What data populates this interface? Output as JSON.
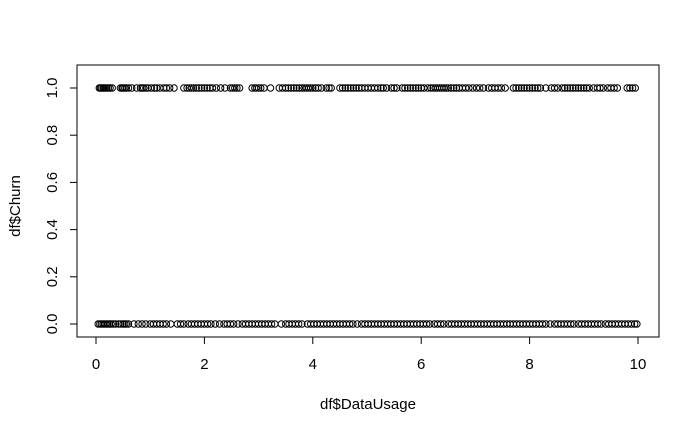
{
  "chart_data": {
    "type": "scatter",
    "title": "",
    "xlabel": "df$DataUsage",
    "ylabel": "df$Churn",
    "xlim": [
      0,
      10
    ],
    "ylim": [
      0,
      1
    ],
    "x_ticks": [
      0,
      2,
      4,
      6,
      8,
      10
    ],
    "x_tick_labels": [
      "0",
      "2",
      "4",
      "6",
      "8",
      "10"
    ],
    "y_ticks": [
      0.0,
      0.2,
      0.4,
      0.6,
      0.8,
      1.0
    ],
    "y_tick_labels": [
      "0.0",
      "0.2",
      "0.4",
      "0.6",
      "0.8",
      "1.0"
    ],
    "grid": false,
    "legend": "none",
    "marker": "open-circle",
    "series": [
      {
        "y": 1,
        "x": [
          0.06,
          0.08,
          0.1,
          0.13,
          0.15,
          0.17,
          0.2,
          0.23,
          0.26,
          0.3,
          0.45,
          0.48,
          0.5,
          0.53,
          0.56,
          0.6,
          0.66,
          0.75,
          0.82,
          0.85,
          0.88,
          0.92,
          0.96,
          1.02,
          1.08,
          1.12,
          1.18,
          1.25,
          1.3,
          1.36,
          1.44,
          1.62,
          1.68,
          1.72,
          1.76,
          1.8,
          1.85,
          1.9,
          1.95,
          2.0,
          2.05,
          2.1,
          2.15,
          2.22,
          2.3,
          2.38,
          2.48,
          2.52,
          2.56,
          2.6,
          2.65,
          2.88,
          2.93,
          2.96,
          3.0,
          3.04,
          3.1,
          3.22,
          3.38,
          3.44,
          3.5,
          3.55,
          3.6,
          3.65,
          3.7,
          3.75,
          3.8,
          3.84,
          3.88,
          3.92,
          3.96,
          4.0,
          4.05,
          4.1,
          4.16,
          4.25,
          4.3,
          4.34,
          4.5,
          4.55,
          4.6,
          4.65,
          4.7,
          4.75,
          4.8,
          4.85,
          4.9,
          4.96,
          5.02,
          5.08,
          5.14,
          5.2,
          5.26,
          5.3,
          5.36,
          5.45,
          5.5,
          5.55,
          5.65,
          5.7,
          5.75,
          5.8,
          5.85,
          5.9,
          5.95,
          6.0,
          6.05,
          6.12,
          6.18,
          6.22,
          6.26,
          6.3,
          6.34,
          6.38,
          6.42,
          6.46,
          6.5,
          6.55,
          6.6,
          6.65,
          6.7,
          6.76,
          6.82,
          6.88,
          6.95,
          7.02,
          7.08,
          7.15,
          7.24,
          7.3,
          7.36,
          7.42,
          7.48,
          7.55,
          7.7,
          7.75,
          7.8,
          7.85,
          7.9,
          7.95,
          8.0,
          8.05,
          8.1,
          8.15,
          8.2,
          8.3,
          8.4,
          8.46,
          8.52,
          8.6,
          8.65,
          8.7,
          8.75,
          8.8,
          8.85,
          8.9,
          8.95,
          9.0,
          9.05,
          9.1,
          9.18,
          9.25,
          9.3,
          9.36,
          9.44,
          9.5,
          9.56,
          9.62,
          9.8,
          9.85,
          9.9,
          9.95
        ]
      },
      {
        "y": 0,
        "x": [
          0.04,
          0.07,
          0.1,
          0.13,
          0.16,
          0.19,
          0.22,
          0.25,
          0.28,
          0.32,
          0.36,
          0.42,
          0.46,
          0.5,
          0.53,
          0.56,
          0.6,
          0.7,
          0.78,
          0.85,
          0.92,
          1.0,
          1.06,
          1.12,
          1.18,
          1.24,
          1.3,
          1.38,
          1.5,
          1.56,
          1.62,
          1.7,
          1.76,
          1.82,
          1.88,
          1.94,
          2.0,
          2.06,
          2.12,
          2.2,
          2.28,
          2.36,
          2.42,
          2.48,
          2.54,
          2.62,
          2.7,
          2.76,
          2.82,
          2.88,
          2.94,
          3.0,
          3.06,
          3.12,
          3.18,
          3.24,
          3.3,
          3.42,
          3.5,
          3.56,
          3.62,
          3.68,
          3.74,
          3.8,
          3.9,
          3.96,
          4.02,
          4.08,
          4.14,
          4.2,
          4.26,
          4.32,
          4.38,
          4.44,
          4.5,
          4.56,
          4.62,
          4.68,
          4.74,
          4.82,
          4.9,
          4.96,
          5.02,
          5.08,
          5.14,
          5.2,
          5.26,
          5.32,
          5.38,
          5.44,
          5.5,
          5.56,
          5.62,
          5.68,
          5.74,
          5.8,
          5.86,
          5.92,
          5.98,
          6.04,
          6.1,
          6.16,
          6.24,
          6.3,
          6.36,
          6.42,
          6.5,
          6.56,
          6.62,
          6.68,
          6.74,
          6.8,
          6.86,
          6.92,
          6.98,
          7.04,
          7.1,
          7.16,
          7.22,
          7.28,
          7.34,
          7.4,
          7.46,
          7.52,
          7.58,
          7.64,
          7.7,
          7.76,
          7.82,
          7.88,
          7.94,
          8.0,
          8.06,
          8.12,
          8.18,
          8.24,
          8.3,
          8.38,
          8.46,
          8.52,
          8.58,
          8.64,
          8.7,
          8.76,
          8.82,
          8.9,
          8.96,
          9.02,
          9.08,
          9.14,
          9.2,
          9.26,
          9.32,
          9.4,
          9.46,
          9.52,
          9.58,
          9.64,
          9.7,
          9.76,
          9.82,
          9.88,
          9.94,
          9.98
        ]
      }
    ]
  }
}
